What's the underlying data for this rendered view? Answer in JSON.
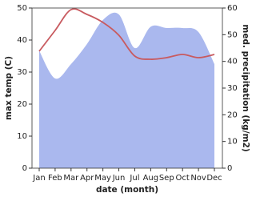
{
  "chart_data": {
    "type": "line-area",
    "x_label": "date (month)",
    "y_label": "max temp (C)",
    "y2_label": "med. precipitation (kg/m2)",
    "categories": [
      "Jan",
      "Feb",
      "Mar",
      "Apr",
      "May",
      "Jun",
      "Jul",
      "Aug",
      "Sep",
      "Oct",
      "Nov",
      "Dec"
    ],
    "series": [
      {
        "name": "med. precipitation",
        "color": "#aab8ee",
        "axis": "y2",
        "kind": "area",
        "values": [
          44,
          33.6,
          39,
          46.5,
          55.5,
          57.6,
          45,
          53,
          52.5,
          52.5,
          51,
          39
        ]
      },
      {
        "name": "max temp",
        "color": "#c85a5f",
        "kind": "line",
        "values": [
          36.5,
          43,
          49.5,
          48,
          45.5,
          41.5,
          35,
          34,
          34.5,
          35.5,
          34.5,
          35.5
        ]
      }
    ],
    "ylim": [
      0,
      50
    ],
    "yticks": [
      0,
      10,
      20,
      30,
      40,
      50
    ],
    "y2lim": [
      0,
      60
    ],
    "y2ticks": [
      0,
      10,
      20,
      30,
      40,
      50,
      60
    ]
  }
}
